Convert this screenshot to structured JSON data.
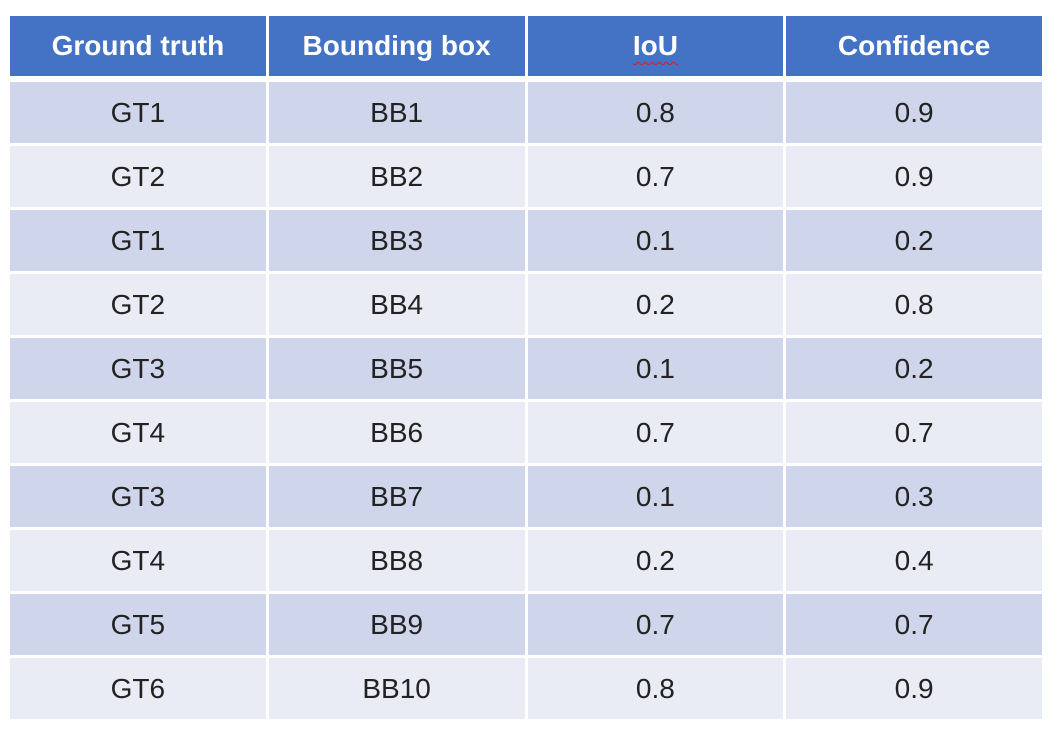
{
  "table": {
    "headers": [
      "Ground truth",
      "Bounding box",
      "IoU",
      "Confidence"
    ],
    "rows": [
      [
        "GT1",
        "BB1",
        "0.8",
        "0.9"
      ],
      [
        "GT2",
        "BB2",
        "0.7",
        "0.9"
      ],
      [
        "GT1",
        "BB3",
        "0.1",
        "0.2"
      ],
      [
        "GT2",
        "BB4",
        "0.2",
        "0.8"
      ],
      [
        "GT3",
        "BB5",
        "0.1",
        "0.2"
      ],
      [
        "GT4",
        "BB6",
        "0.7",
        "0.7"
      ],
      [
        "GT3",
        "BB7",
        "0.1",
        "0.3"
      ],
      [
        "GT4",
        "BB8",
        "0.2",
        "0.4"
      ],
      [
        "GT5",
        "BB9",
        "0.7",
        "0.7"
      ],
      [
        "GT6",
        "BB10",
        "0.8",
        "0.9"
      ]
    ]
  },
  "colors": {
    "header_bg": "#4472c4",
    "row_band_dark": "#cfd5ea",
    "row_band_light": "#e9ebf5",
    "spellcheck_underline": "#d02020"
  }
}
